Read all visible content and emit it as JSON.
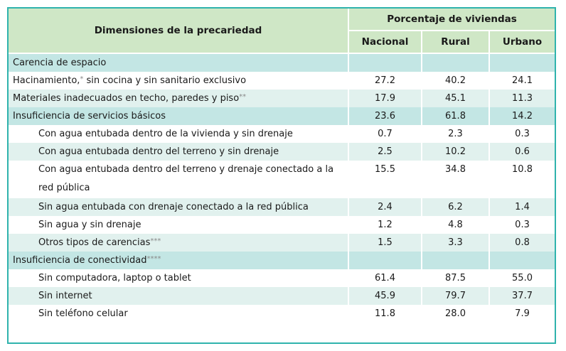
{
  "chart_data": {
    "type": "table",
    "headers": {
      "row_header": "Dimensiones de la precariedad",
      "group": "Porcentaje de viviendas",
      "columns": [
        "Nacional",
        "Rural",
        "Urbano"
      ]
    },
    "rows": [
      {
        "label": "Carencia de espacio",
        "mark": "",
        "values": [
          "",
          "",
          ""
        ]
      },
      {
        "label": "Hacinamiento,",
        "mark": "*",
        "tail": " sin cocina y sin sanitario exclusivo",
        "values": [
          "27.2",
          "40.2",
          "24.1"
        ]
      },
      {
        "label": "Materiales inadecuados en techo, paredes y piso",
        "mark": "**",
        "values": [
          "17.9",
          "45.1",
          "11.3"
        ]
      },
      {
        "label": "Insuficiencia de servicios básicos",
        "mark": "",
        "values": [
          "23.6",
          "61.8",
          "14.2"
        ]
      },
      {
        "label": "Con agua entubada dentro de la vivienda y sin drenaje",
        "mark": "",
        "values": [
          "0.7",
          "2.3",
          "0.3"
        ]
      },
      {
        "label": "Con agua entubada dentro del terreno y sin drenaje",
        "mark": "",
        "values": [
          "2.5",
          "10.2",
          "0.6"
        ]
      },
      {
        "label": "Con agua entubada dentro del terreno y drenaje conectado a la red pública",
        "mark": "",
        "values": [
          "15.5",
          "34.8",
          "10.8"
        ]
      },
      {
        "label": "Sin agua entubada con drenaje conectado a la red pública",
        "mark": "",
        "values": [
          "2.4",
          "6.2",
          "1.4"
        ]
      },
      {
        "label": "Sin agua y sin drenaje",
        "mark": "",
        "values": [
          "1.2",
          "4.8",
          "0.3"
        ]
      },
      {
        "label": "Otros tipos de carencias",
        "mark": "***",
        "values": [
          "1.5",
          "3.3",
          "0.8"
        ]
      },
      {
        "label": "Insuficiencia de conectividad",
        "mark": "****",
        "values": [
          "",
          "",
          ""
        ]
      },
      {
        "label": "Sin computadora, laptop o tablet",
        "mark": "",
        "values": [
          "61.4",
          "87.5",
          "55.0"
        ]
      },
      {
        "label": "Sin internet",
        "mark": "",
        "values": [
          "45.9",
          "79.7",
          "37.7"
        ]
      },
      {
        "label": "Sin teléfono celular",
        "mark": "",
        "values": [
          "11.8",
          "28.0",
          "7.9"
        ]
      }
    ]
  },
  "colors": {
    "border": "#2fb3ad",
    "header_bg": "#cfe7c6",
    "section_bg": "#c3e6e4",
    "stripe_bg": "#e1f1ee",
    "row_bg": "#ffffff"
  }
}
